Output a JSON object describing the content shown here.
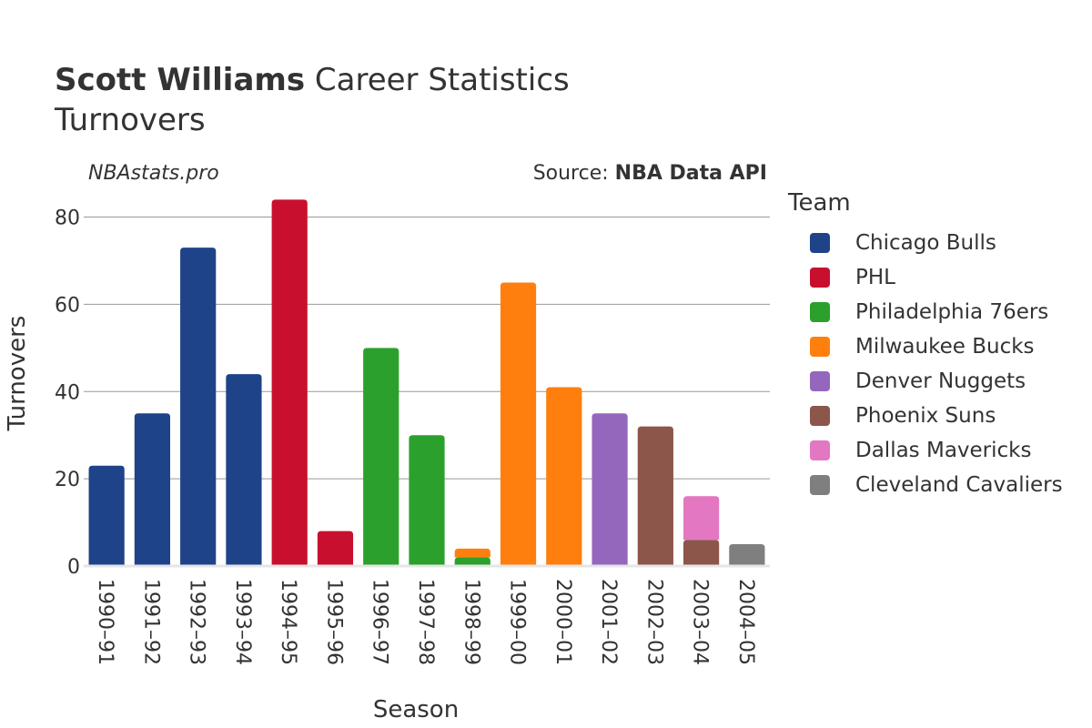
{
  "header": {
    "player_name": "Scott Williams",
    "title_suffix": " Career Statistics",
    "subtitle": "Turnovers",
    "brand": "NBAstats.pro",
    "source_prefix": "Source: ",
    "source_name": "NBA Data API"
  },
  "legend": {
    "title": "Team"
  },
  "chart_data": {
    "type": "bar",
    "stacked": true,
    "xlabel": "Season",
    "ylabel": "Turnovers",
    "ylim": [
      0,
      87
    ],
    "yticks": [
      0,
      20,
      40,
      60,
      80
    ],
    "grid": true,
    "legend_position": "right",
    "categories": [
      "1990–91",
      "1991–92",
      "1992–93",
      "1993–94",
      "1994–95",
      "1995–96",
      "1996–97",
      "1997–98",
      "1998–99",
      "1999–00",
      "2000–01",
      "2001–02",
      "2002–03",
      "2003–04",
      "2004–05"
    ],
    "series": [
      {
        "name": "Chicago Bulls",
        "color": "#1f4389",
        "values": [
          23,
          35,
          73,
          44,
          0,
          0,
          0,
          0,
          0,
          0,
          0,
          0,
          0,
          0,
          0
        ]
      },
      {
        "name": "PHL",
        "color": "#c8102e",
        "values": [
          0,
          0,
          0,
          0,
          84,
          8,
          0,
          0,
          0,
          0,
          0,
          0,
          0,
          0,
          0
        ]
      },
      {
        "name": "Philadelphia 76ers",
        "color": "#2ca02c",
        "values": [
          0,
          0,
          0,
          0,
          0,
          0,
          50,
          30,
          2,
          0,
          0,
          0,
          0,
          0,
          0
        ]
      },
      {
        "name": "Milwaukee Bucks",
        "color": "#ff7f0e",
        "values": [
          0,
          0,
          0,
          0,
          0,
          0,
          0,
          0,
          2,
          65,
          41,
          0,
          0,
          0,
          0
        ]
      },
      {
        "name": "Denver Nuggets",
        "color": "#9467bd",
        "values": [
          0,
          0,
          0,
          0,
          0,
          0,
          0,
          0,
          0,
          0,
          0,
          35,
          0,
          0,
          0
        ]
      },
      {
        "name": "Phoenix Suns",
        "color": "#8c564b",
        "values": [
          0,
          0,
          0,
          0,
          0,
          0,
          0,
          0,
          0,
          0,
          0,
          0,
          32,
          6,
          0
        ]
      },
      {
        "name": "Dallas Mavericks",
        "color": "#e377c2",
        "values": [
          0,
          0,
          0,
          0,
          0,
          0,
          0,
          0,
          0,
          0,
          0,
          0,
          0,
          10,
          0
        ]
      },
      {
        "name": "Cleveland Cavaliers",
        "color": "#7f7f7f",
        "values": [
          0,
          0,
          0,
          0,
          0,
          0,
          0,
          0,
          0,
          0,
          0,
          0,
          0,
          0,
          5
        ]
      }
    ]
  }
}
